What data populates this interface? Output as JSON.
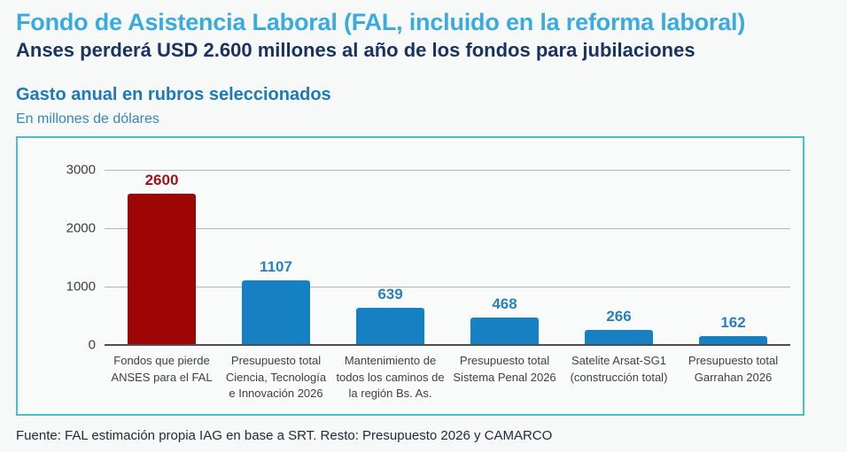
{
  "header": {
    "title": "Fondo de Asistencia Laboral (FAL, incluido en la reforma laboral)",
    "subtitle": "Anses perderá USD 2.600 millones al año de los fondos para jubilaciones"
  },
  "section": {
    "title": "Gasto anual en rubros seleccionados",
    "units": "En millones de dólares"
  },
  "chart_data": {
    "type": "bar",
    "title": "Gasto anual en rubros seleccionados",
    "ylabel": "En millones de dólares",
    "xlabel": "",
    "categories": [
      "Fondos que pierde ANSES para el FAL",
      "Presupuesto total Ciencia, Tecnología e Innovación 2026",
      "Mantenimiento de todos los caminos de la región Bs. As.",
      "Presupuesto total Sistema Penal 2026",
      "Satelite Arsat-SG1 (construcción total)",
      "Presupuesto total Garrahan 2026"
    ],
    "values": [
      2600,
      1107,
      639,
      468,
      266,
      162
    ],
    "bar_colors": [
      "#9e0505",
      "#1580c2",
      "#1580c2",
      "#1580c2",
      "#1580c2",
      "#1580c2"
    ],
    "value_label_colors": [
      "#9e1216",
      "#2580bd",
      "#2580bd",
      "#2580bd",
      "#2580bd",
      "#2580bd"
    ],
    "yticks": [
      0,
      1000,
      2000,
      3000
    ],
    "ylim": [
      0,
      3000
    ],
    "grid": true,
    "legend": false
  },
  "footer": {
    "source": "Fuente: FAL estimación propia IAG en base a SRT. Resto: Presupuesto 2026 y  CAMARCO"
  },
  "colors": {
    "page_background": "#f7f8f8",
    "title_blue": "#3babdf",
    "subtitle_navy": "#19325f",
    "section_blue": "#1d79b8",
    "units_blue": "#3389bb",
    "panel_border_teal": "#49bfc7",
    "bar_red": "#9e0505",
    "bar_blue": "#1580c2",
    "gridline_gray": "#b5b5b5",
    "baseline_dark": "#4e4e4e"
  }
}
